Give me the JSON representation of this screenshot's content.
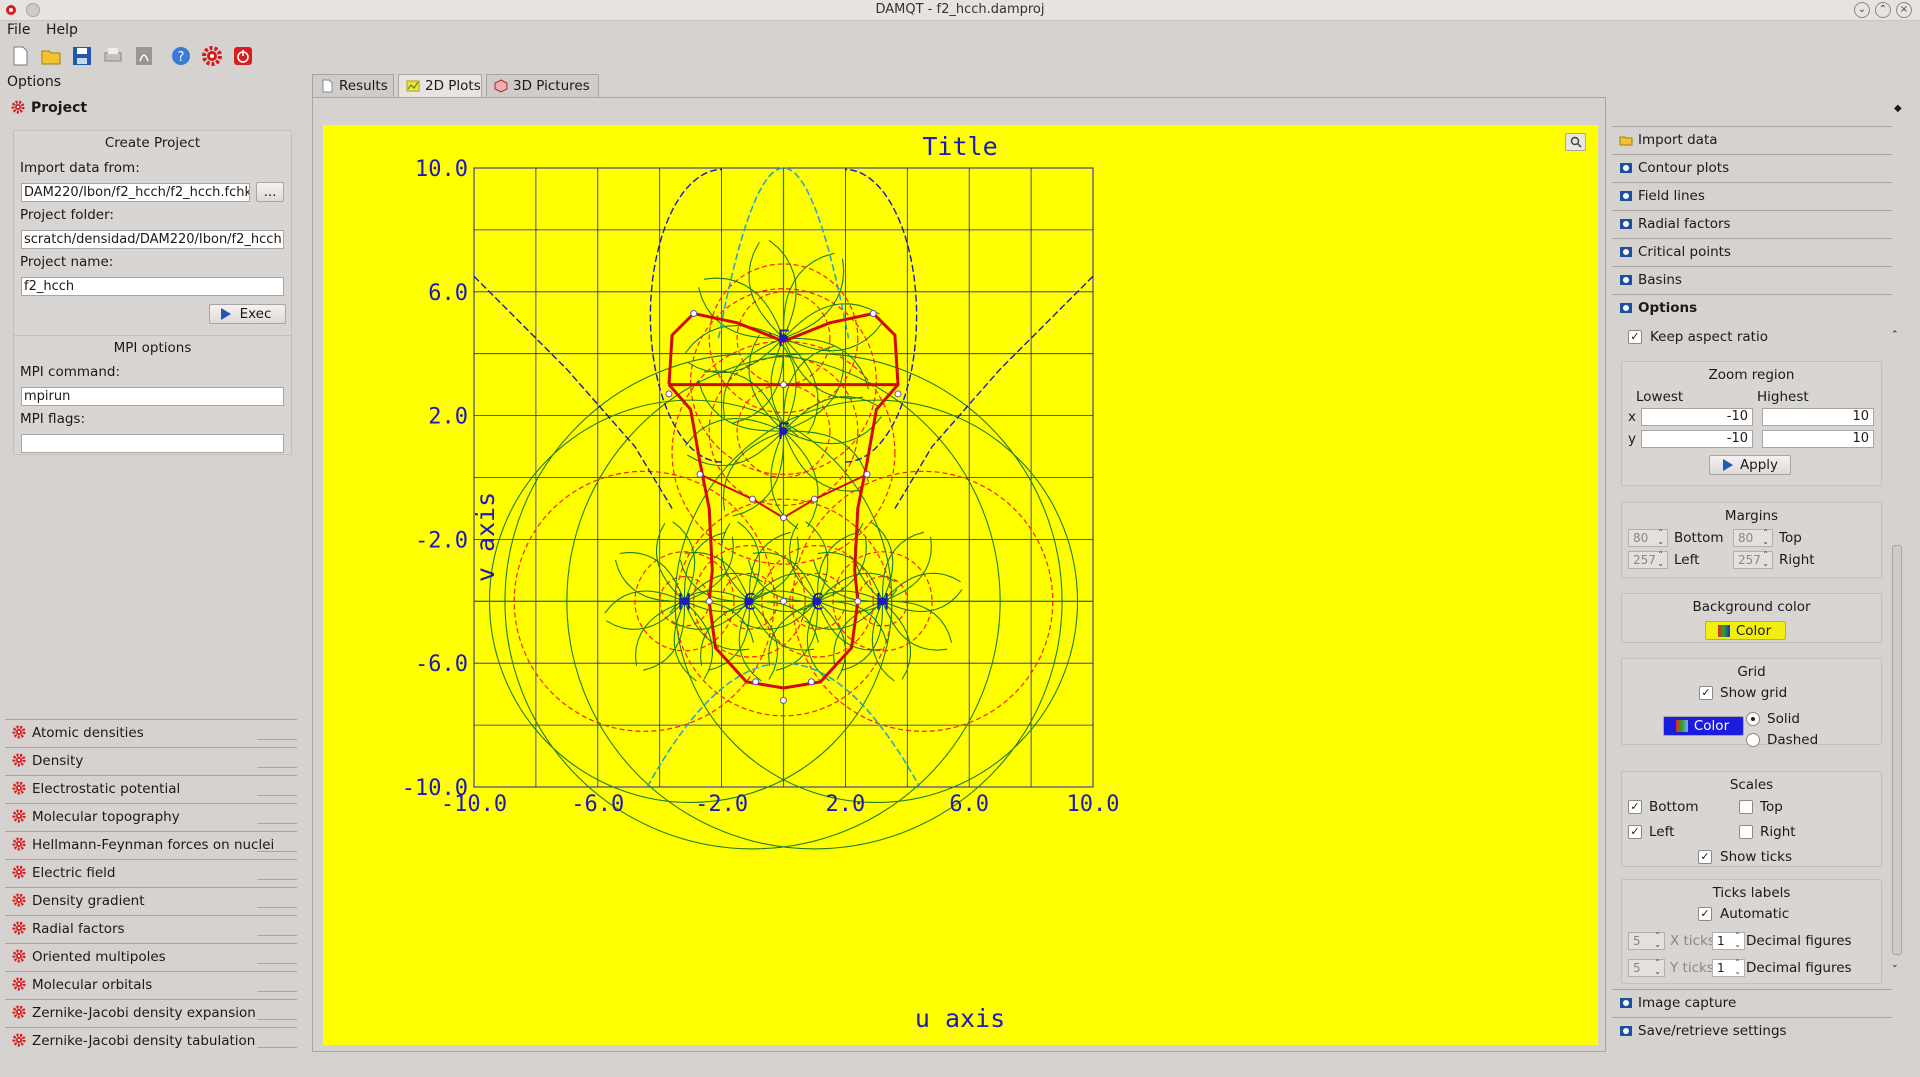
{
  "window": {
    "title": "DAMQT - f2_hcch.damproj"
  },
  "menu": {
    "file": "File",
    "help": "Help"
  },
  "toolbar": {
    "icons": [
      "new-file-icon",
      "open-folder-icon",
      "save-icon",
      "print-icon",
      "pdf-icon",
      "help-icon",
      "settings-gear-icon",
      "power-icon"
    ]
  },
  "left": {
    "options_label": "Options",
    "project_label": "Project",
    "create_project": {
      "title": "Create Project",
      "import_label": "Import data from:",
      "import_value": "DAM220/Ibon/f2_hcch/f2_hcch.fchk",
      "browse": "...",
      "folder_label": "Project folder:",
      "folder_value": "scratch/densidad/DAM220/Ibon/f2_hcch",
      "name_label": "Project name:",
      "name_value": "f2_hcch",
      "exec": "Exec"
    },
    "mpi": {
      "title": "MPI options",
      "command_label": "MPI command:",
      "command_value": "mpirun",
      "flags_label": "MPI flags:",
      "flags_value": ""
    },
    "sections": [
      "Atomic densities",
      "Density",
      "Electrostatic potential",
      "Molecular topography",
      "Hellmann-Feynman forces on nuclei",
      "Electric field",
      "Density gradient",
      "Radial factors",
      "Oriented multipoles",
      "Molecular orbitals",
      "Zernike-Jacobi density expansion",
      "Zernike-Jacobi density tabulation"
    ]
  },
  "tabs": [
    "Results",
    "2D Plots",
    "3D Pictures"
  ],
  "active_tab": "2D Plots",
  "chart_data": {
    "type": "line",
    "title": "Title",
    "xlabel": "u axis",
    "ylabel": "v axis",
    "xlim": [
      -10,
      10
    ],
    "ylim": [
      -10,
      10
    ],
    "xticks": [
      "-10.0",
      "-6.0",
      "-2.0",
      "2.0",
      "6.0",
      "10.0"
    ],
    "yticks": [
      "10.0",
      "6.0",
      "2.0",
      "-2.0",
      "-6.0",
      "-10.0"
    ],
    "grid": true,
    "background": "#ffff00",
    "colors": {
      "axes": "#1c1cb4",
      "grid": "#1c1cb4",
      "contour": "#ff1a1a",
      "field_lines": "#1e7d1e",
      "dashed_boundary": "#1c1cb4",
      "basin": "#d20a0a"
    },
    "atoms": [
      {
        "label": "F",
        "x": 0.0,
        "y": 4.5
      },
      {
        "label": "F",
        "x": 0.0,
        "y": 1.5
      },
      {
        "label": "H",
        "x": -3.2,
        "y": -4.0
      },
      {
        "label": "C",
        "x": -1.1,
        "y": -4.0
      },
      {
        "label": "C",
        "x": 1.1,
        "y": -4.0
      },
      {
        "label": "H",
        "x": 3.2,
        "y": -4.0
      }
    ],
    "critical_points": [
      {
        "x": 0.0,
        "y": 3.0
      },
      {
        "x": -3.7,
        "y": 2.7
      },
      {
        "x": 3.7,
        "y": 2.7
      },
      {
        "x": -2.9,
        "y": 5.3
      },
      {
        "x": 2.9,
        "y": 5.3
      },
      {
        "x": -2.7,
        "y": 0.1
      },
      {
        "x": 2.7,
        "y": 0.1
      },
      {
        "x": 0.0,
        "y": -1.3
      },
      {
        "x": -1.0,
        "y": -0.7
      },
      {
        "x": 1.0,
        "y": -0.7
      },
      {
        "x": -2.4,
        "y": -4.0
      },
      {
        "x": 2.4,
        "y": -4.0
      },
      {
        "x": 0.0,
        "y": -4.0
      },
      {
        "x": 0.0,
        "y": -7.2
      },
      {
        "x": -0.9,
        "y": -6.6
      },
      {
        "x": 0.9,
        "y": -6.6
      }
    ]
  },
  "right": {
    "sections": [
      "Import data",
      "Contour plots",
      "Field lines",
      "Radial factors",
      "Critical points",
      "Basins",
      "Options"
    ],
    "keep_aspect": "Keep aspect ratio",
    "zoom": {
      "title": "Zoom region",
      "lowest": "Lowest",
      "highest": "Highest",
      "x": "x",
      "y": "y",
      "xmin": "-10",
      "xmax": "10",
      "ymin": "-10",
      "ymax": "10",
      "apply": "Apply"
    },
    "margins": {
      "title": "Margins",
      "bottom_val": "80",
      "bottom": "Bottom",
      "top_val": "80",
      "top": "Top",
      "left_val": "257",
      "left": "Left",
      "right_val": "257",
      "right": "Right"
    },
    "background": {
      "title": "Background color",
      "button": "Color"
    },
    "grid": {
      "title": "Grid",
      "show": "Show grid",
      "color": "Color",
      "solid": "Solid",
      "dashed": "Dashed"
    },
    "scales": {
      "title": "Scales",
      "bottom": "Bottom",
      "top": "Top",
      "left": "Left",
      "right": "Right",
      "ticks": "Show ticks"
    },
    "ticks": {
      "title": "Ticks labels",
      "auto": "Automatic",
      "xticks_val": "5",
      "xticks": "X ticks",
      "xdec_val": "1",
      "yticks_val": "5",
      "yticks": "Y ticks",
      "ydec_val": "1",
      "decimal": "Decimal figures"
    },
    "bottom_sections": [
      "Image capture",
      "Save/retrieve settings"
    ]
  }
}
